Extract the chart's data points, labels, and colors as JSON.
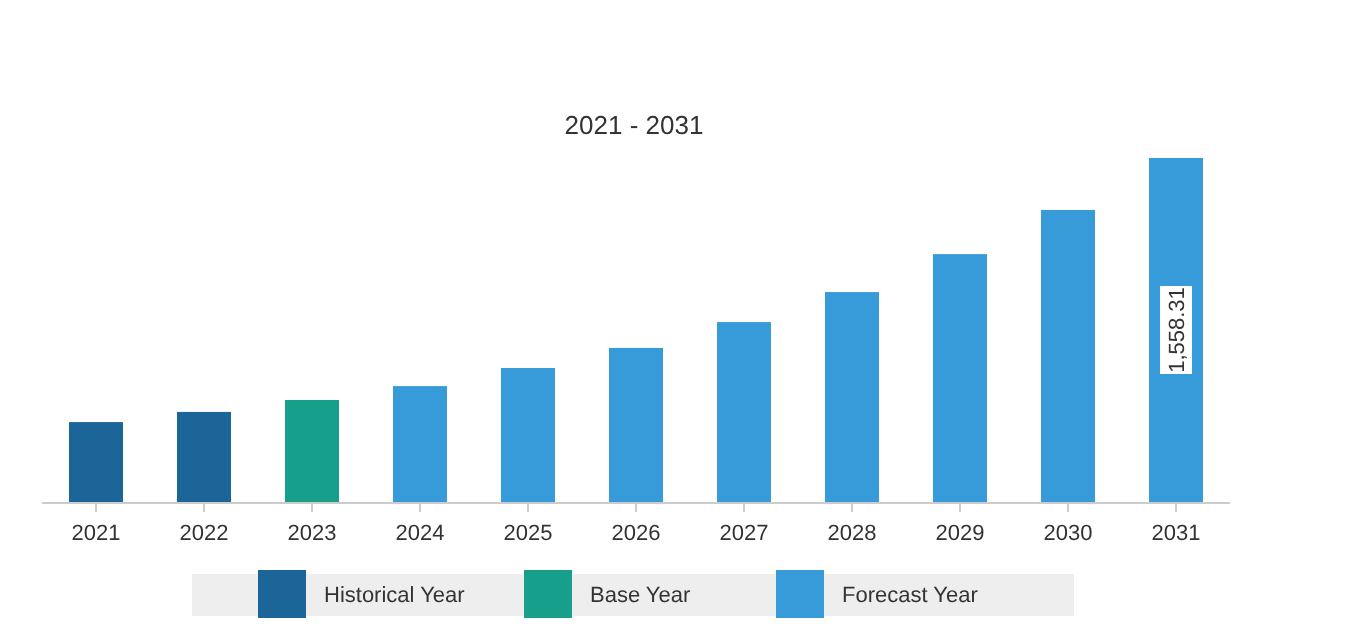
{
  "chart_data": {
    "type": "bar",
    "title": "2021 - 2031",
    "categories": [
      "2021",
      "2022",
      "2023",
      "2024",
      "2025",
      "2026",
      "2027",
      "2028",
      "2029",
      "2030",
      "2031"
    ],
    "legend": "bottom",
    "series": [
      {
        "name": "Historical Year",
        "color": "#1b6598",
        "values": [
          362,
          408,
          null,
          null,
          null,
          null,
          null,
          null,
          null,
          null,
          null
        ]
      },
      {
        "name": "Base Year",
        "color": "#169f8b",
        "values": [
          null,
          null,
          462,
          null,
          null,
          null,
          null,
          null,
          null,
          null,
          null
        ]
      },
      {
        "name": "Forecast Year",
        "color": "#379ad9",
        "values": [
          null,
          null,
          null,
          525,
          607,
          698,
          815,
          951,
          1123,
          1323,
          1558.31
        ],
        "value_labels": [
          null,
          null,
          null,
          null,
          null,
          null,
          null,
          null,
          null,
          null,
          "1,558.31"
        ]
      }
    ]
  }
}
